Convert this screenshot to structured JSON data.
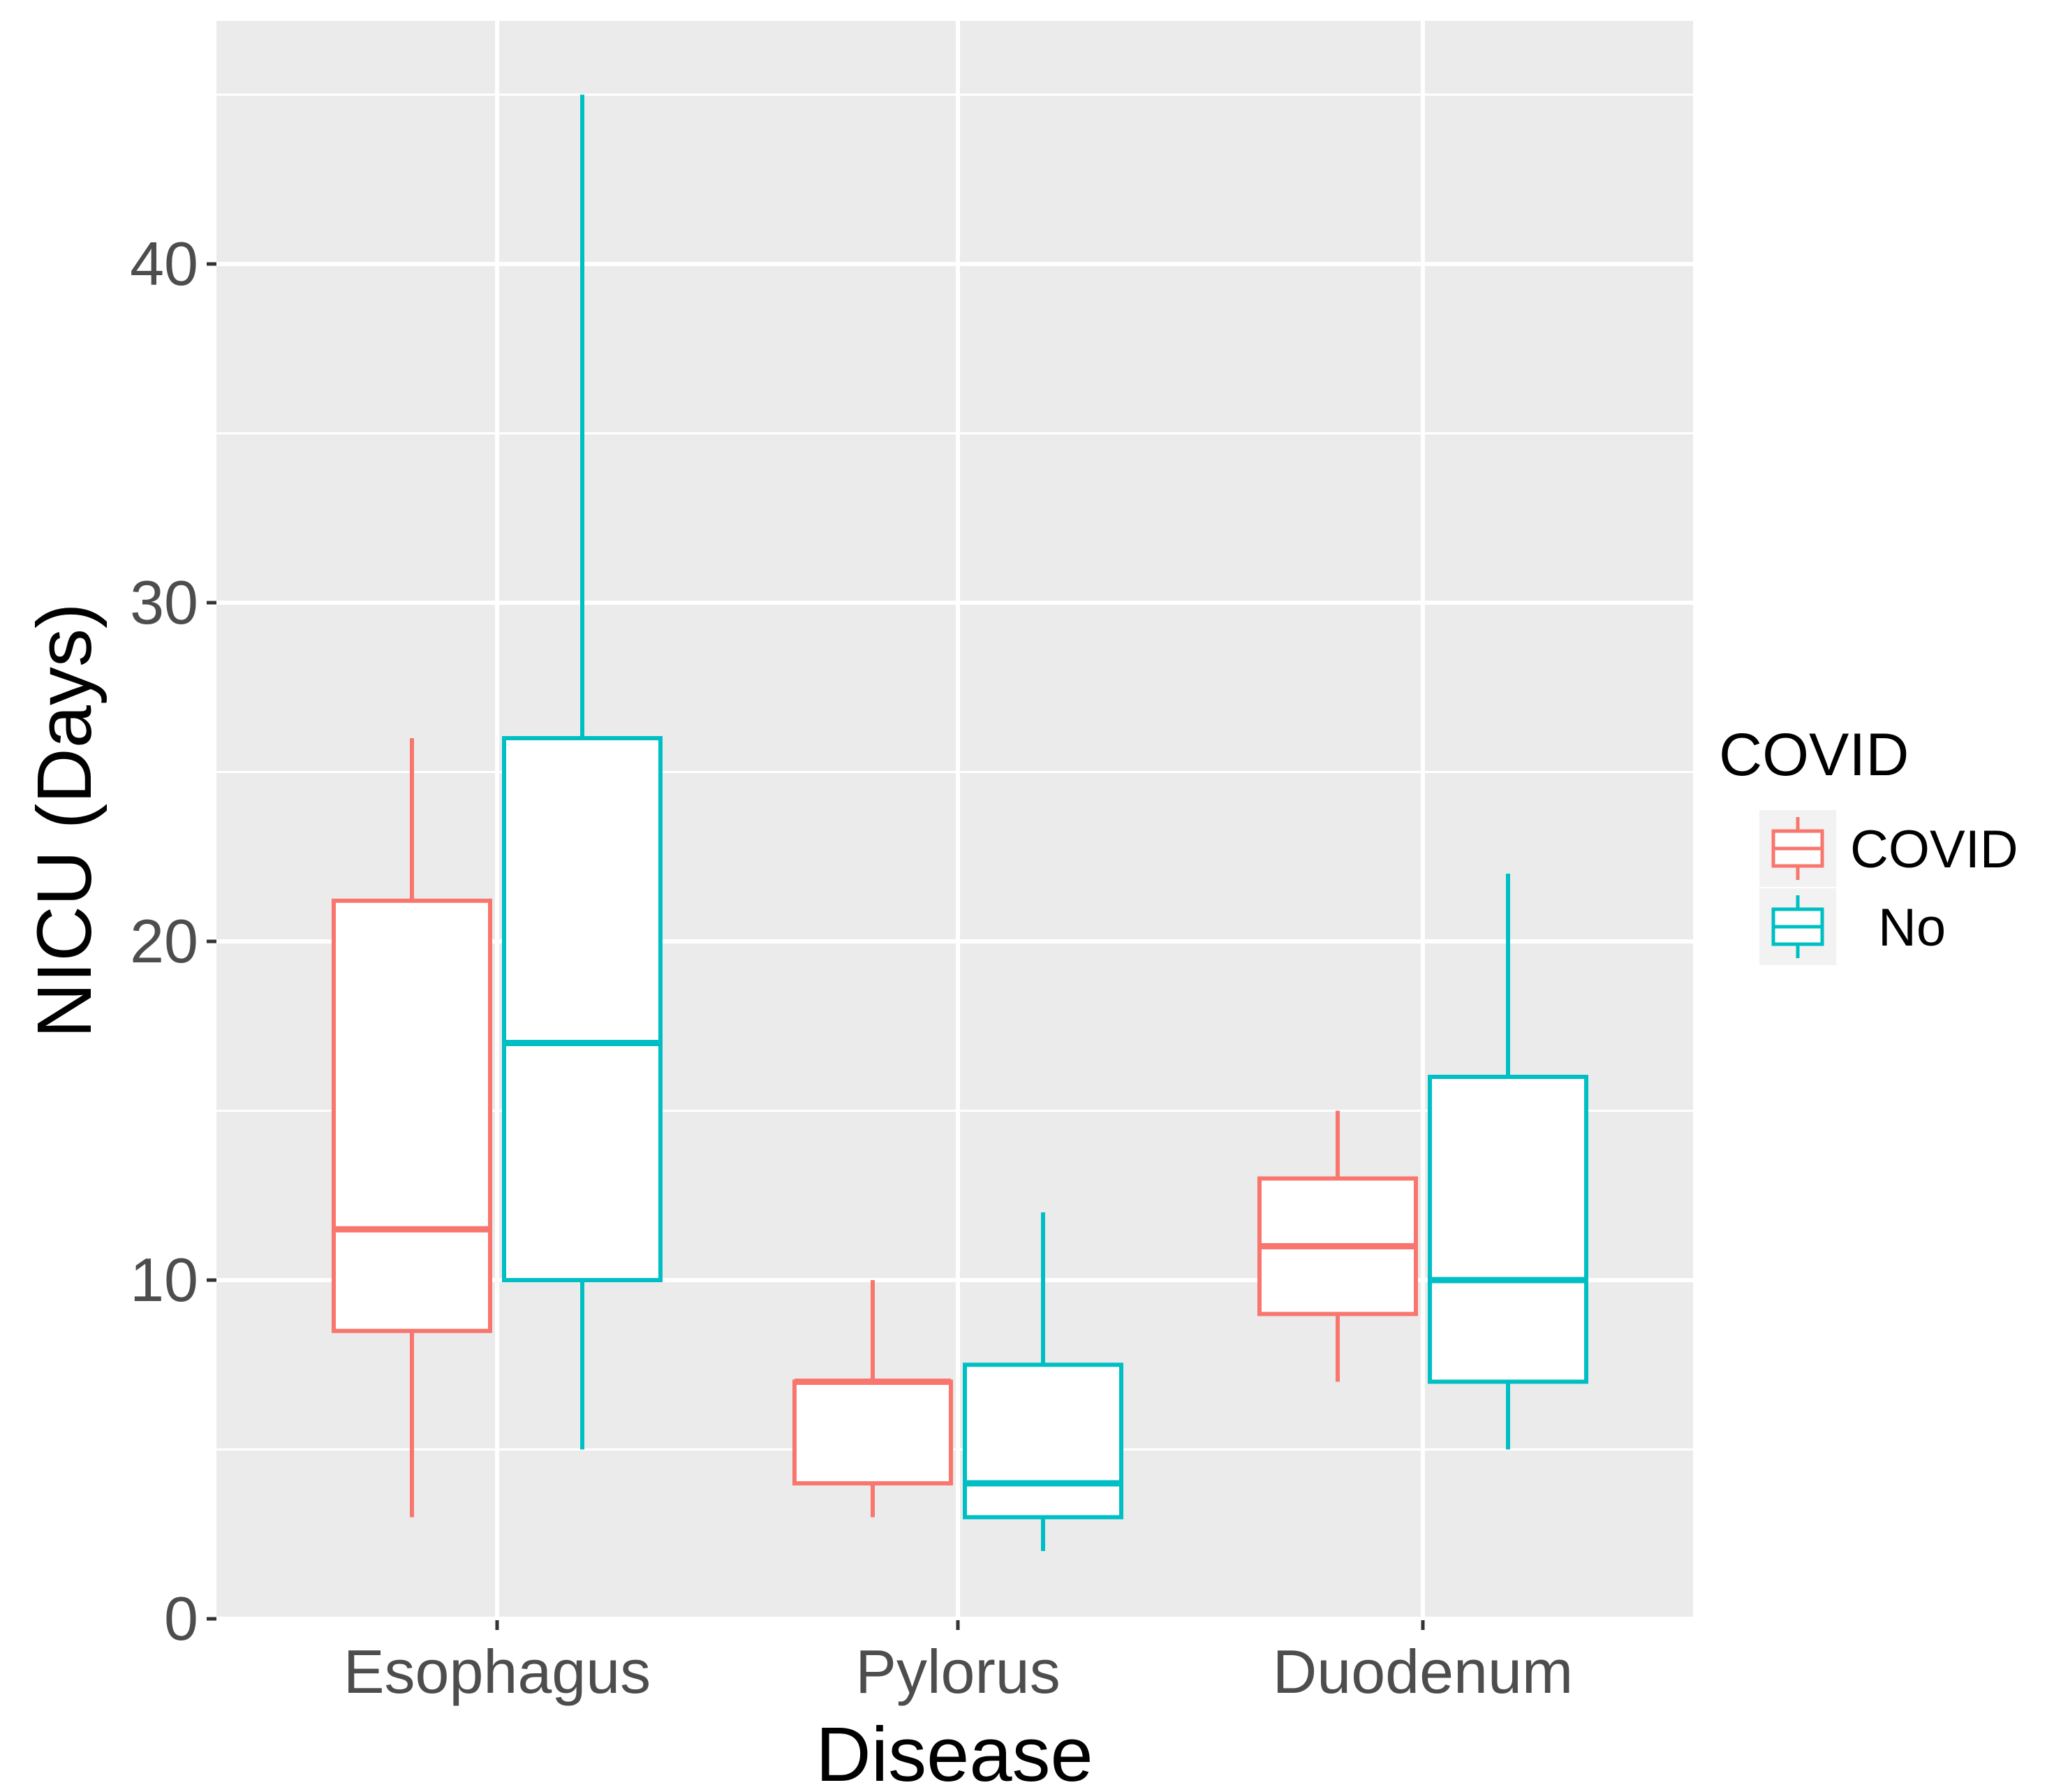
{
  "chart_data": {
    "type": "boxplot",
    "title": "",
    "xlabel": "Disease",
    "ylabel": "NICU (Days)",
    "ylim": [
      0,
      47
    ],
    "yticks": [
      0,
      10,
      20,
      30,
      40
    ],
    "categories": [
      "Esophagus",
      "Pylorus",
      "Duodenum"
    ],
    "legend": {
      "title": "COVID",
      "placement": "right",
      "entries": [
        {
          "label": "COVID",
          "color": "#F8766D"
        },
        {
          "label": "No",
          "color": "#00BFC4"
        }
      ]
    },
    "series": [
      {
        "name": "COVID",
        "color": "#F8766D",
        "boxes": [
          {
            "category": "Esophagus",
            "min": 3,
            "q1": 8.5,
            "median": 11.5,
            "q3": 21.2,
            "max": 26
          },
          {
            "category": "Pylorus",
            "min": 3,
            "q1": 4,
            "median": 7,
            "q3": 7,
            "max": 10
          },
          {
            "category": "Duodenum",
            "min": 7,
            "q1": 9,
            "median": 11,
            "q3": 13,
            "max": 15
          }
        ]
      },
      {
        "name": "No",
        "color": "#00BFC4",
        "boxes": [
          {
            "category": "Esophagus",
            "min": 5,
            "q1": 10,
            "median": 17,
            "q3": 26,
            "max": 45
          },
          {
            "category": "Pylorus",
            "min": 2,
            "q1": 3,
            "median": 4,
            "q3": 7.5,
            "max": 12
          },
          {
            "category": "Duodenum",
            "min": 5,
            "q1": 7,
            "median": 10,
            "q3": 16,
            "max": 22
          }
        ]
      }
    ]
  }
}
